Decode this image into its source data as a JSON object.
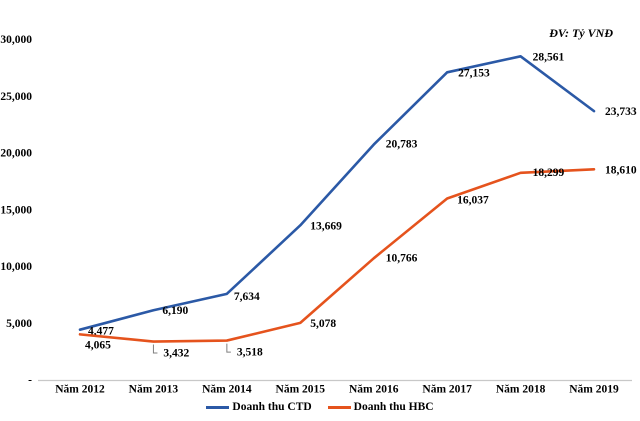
{
  "chart_data": {
    "type": "line",
    "title": "",
    "unit_label": "ĐV: Tỷ VNĐ",
    "categories": [
      "Năm 2012",
      "Năm 2013",
      "Năm 2014",
      "Năm 2015",
      "Năm 2016",
      "Năm 2017",
      "Năm 2018",
      "Năm 2019"
    ],
    "y_axis": {
      "min": 0,
      "max": 30000,
      "tick_step": 5000,
      "tick_labels": [
        "-",
        "5,000",
        "10,000",
        "15,000",
        "20,000",
        "25,000",
        "30,000"
      ]
    },
    "grid": "off",
    "legend_position": "bottom",
    "axis_color": "#c8c8c8",
    "leader_color": "#7f7f7f",
    "label_color": "#000000",
    "series": [
      {
        "name": "Doanh thu CTD",
        "color": "#2b59a6",
        "values": [
          4477,
          6190,
          7634,
          13669,
          20783,
          27153,
          28561,
          23733
        ],
        "labels": [
          "4,477",
          "6,190",
          "7,634",
          "13,669",
          "20,783",
          "27,153",
          "28,561",
          "23,733"
        ],
        "label_offsets": [
          [
            8,
            2
          ],
          [
            9,
            1
          ],
          [
            7,
            3
          ],
          [
            10,
            1
          ],
          [
            12,
            0
          ],
          [
            11,
            1
          ],
          [
            12,
            1
          ],
          [
            11,
            1
          ]
        ],
        "leader_indices": []
      },
      {
        "name": "Doanh thu HBC",
        "color": "#e5531d",
        "values": [
          4065,
          3432,
          3518,
          5078,
          10766,
          16037,
          18299,
          18610
        ],
        "labels": [
          "4,065",
          "3,432",
          "3,518",
          "5,078",
          "10,766",
          "16,037",
          "18,299",
          "18,610"
        ],
        "label_offsets": [
          [
            5,
            11
          ],
          [
            10,
            12
          ],
          [
            10,
            12
          ],
          [
            10,
            1
          ],
          [
            12,
            0
          ],
          [
            10,
            2
          ],
          [
            12,
            0
          ],
          [
            11,
            1
          ]
        ],
        "leader_indices": [
          1,
          2
        ]
      }
    ]
  }
}
